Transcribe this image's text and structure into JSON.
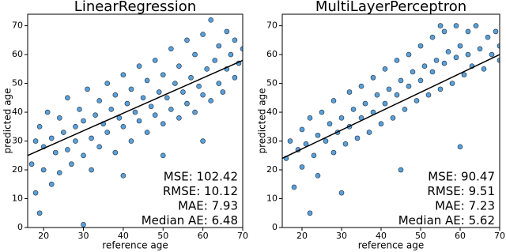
{
  "chart_data": [
    {
      "type": "scatter",
      "title": "LinearRegression",
      "x_label": "reference age",
      "y_label": "predicted age",
      "xlim": [
        16,
        70
      ],
      "ylim": [
        0,
        74
      ],
      "xticks": [
        20,
        30,
        40,
        50,
        60,
        70
      ],
      "yticks": [
        0,
        10,
        20,
        30,
        40,
        50,
        60,
        70
      ],
      "color": "#3d8fd1",
      "edgecolor": "#1b2b3b",
      "x": [
        17,
        18,
        18,
        19,
        20,
        20,
        21,
        22,
        22,
        23,
        24,
        24,
        25,
        26,
        26,
        27,
        28,
        28,
        29,
        30,
        30,
        31,
        32,
        32,
        33,
        34,
        34,
        35,
        36,
        36,
        37,
        38,
        38,
        39,
        40,
        40,
        41,
        42,
        42,
        43,
        44,
        44,
        45,
        46,
        46,
        47,
        48,
        48,
        49,
        50,
        50,
        51,
        52,
        52,
        53,
        54,
        54,
        55,
        56,
        56,
        57,
        58,
        58,
        59,
        60,
        60,
        61,
        62,
        62,
        63,
        64,
        64,
        65,
        66,
        66,
        67,
        68,
        68,
        69,
        70,
        30,
        19,
        40,
        50,
        60
      ],
      "values": [
        22,
        30,
        12,
        35,
        20,
        28,
        40,
        15,
        31,
        26,
        38,
        19,
        33,
        27,
        45,
        22,
        35,
        30,
        41,
        25,
        37,
        48,
        31,
        20,
        39,
        44,
        28,
        36,
        50,
        33,
        41,
        26,
        46,
        38,
        53,
        35,
        43,
        30,
        48,
        40,
        56,
        37,
        45,
        33,
        51,
        42,
        58,
        39,
        47,
        36,
        53,
        45,
        62,
        41,
        50,
        38,
        56,
        47,
        65,
        43,
        52,
        40,
        60,
        49,
        67,
        46,
        55,
        72,
        44,
        58,
        50,
        63,
        47,
        68,
        55,
        60,
        52,
        65,
        57,
        62,
        1,
        5,
        18,
        25,
        30
      ],
      "fit_line": {
        "x": [
          16,
          70
        ],
        "values": [
          25,
          58
        ],
        "color": "#000000"
      },
      "annotations": [
        "MSE: 102.42",
        "RMSE: 10.12",
        "MAE: 7.93",
        "Median AE: 6.48"
      ]
    },
    {
      "type": "scatter",
      "title": "MultiLayerPerceptron",
      "x_label": "reference age",
      "y_label": "predicted age",
      "xlim": [
        15,
        70
      ],
      "ylim": [
        0,
        74
      ],
      "xticks": [
        20,
        30,
        40,
        50,
        60,
        70
      ],
      "yticks": [
        0,
        10,
        20,
        30,
        40,
        50,
        60,
        70
      ],
      "color": "#3d8fd1",
      "edgecolor": "#1b2b3b",
      "x": [
        16,
        17,
        18,
        19,
        20,
        20,
        21,
        22,
        23,
        24,
        24,
        25,
        26,
        27,
        28,
        28,
        29,
        30,
        31,
        32,
        32,
        33,
        34,
        35,
        35,
        36,
        37,
        38,
        38,
        39,
        40,
        41,
        41,
        42,
        43,
        44,
        44,
        45,
        46,
        47,
        47,
        48,
        49,
        50,
        50,
        51,
        52,
        53,
        53,
        54,
        55,
        56,
        56,
        57,
        58,
        59,
        59,
        60,
        61,
        62,
        62,
        63,
        64,
        65,
        66,
        67,
        68,
        69,
        70,
        70,
        22,
        30,
        45,
        60,
        55
      ],
      "values": [
        24,
        30,
        14,
        27,
        34,
        21,
        29,
        38,
        25,
        32,
        18,
        40,
        30,
        36,
        26,
        44,
        33,
        38,
        29,
        47,
        35,
        41,
        31,
        49,
        38,
        43,
        33,
        52,
        40,
        46,
        36,
        55,
        43,
        48,
        38,
        58,
        46,
        51,
        41,
        60,
        49,
        54,
        44,
        63,
        51,
        56,
        46,
        66,
        54,
        58,
        48,
        68,
        57,
        61,
        50,
        70,
        59,
        63,
        53,
        68,
        60,
        56,
        70,
        62,
        55,
        66,
        60,
        68,
        63,
        58,
        5,
        12,
        20,
        28,
        70
      ],
      "fit_line": {
        "x": [
          15,
          70
        ],
        "values": [
          24,
          60
        ],
        "color": "#000000"
      },
      "annotations": [
        "MSE: 90.47",
        "RMSE: 9.51",
        "MAE: 7.23",
        "Median AE: 5.62"
      ]
    }
  ]
}
